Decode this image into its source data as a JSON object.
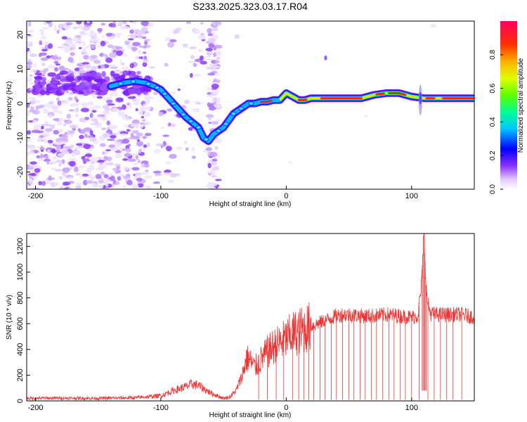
{
  "figure": {
    "title": "S233.2025.323.03.17.R04"
  },
  "chart_data": [
    {
      "type": "heatmap",
      "xlabel": "Height of straight line (km)",
      "ylabel": "Frequency (Hz)",
      "xlim": [
        -207,
        150
      ],
      "ylim": [
        -25,
        24
      ],
      "xticks": [
        -200,
        -100,
        0,
        100
      ],
      "yticks": [
        -20,
        -10,
        0,
        10,
        20
      ],
      "ridge": [
        [
          -140,
          5
        ],
        [
          -130,
          6
        ],
        [
          -120,
          6.5
        ],
        [
          -112,
          6
        ],
        [
          -105,
          5
        ],
        [
          -100,
          4
        ],
        [
          -95,
          2
        ],
        [
          -90,
          0
        ],
        [
          -85,
          -2
        ],
        [
          -80,
          -4
        ],
        [
          -75,
          -5.5
        ],
        [
          -70,
          -7
        ],
        [
          -66,
          -10
        ],
        [
          -62,
          -11
        ],
        [
          -58,
          -9
        ],
        [
          -54,
          -8
        ],
        [
          -50,
          -7
        ],
        [
          -46,
          -5
        ],
        [
          -42,
          -3
        ],
        [
          -38,
          -2
        ],
        [
          -34,
          -1
        ],
        [
          -30,
          0
        ],
        [
          -25,
          0
        ],
        [
          -20,
          0.5
        ],
        [
          -15,
          0.5
        ],
        [
          -10,
          1
        ],
        [
          -5,
          1
        ],
        [
          0,
          3
        ],
        [
          5,
          2
        ],
        [
          10,
          1
        ],
        [
          15,
          1
        ],
        [
          20,
          1.5
        ],
        [
          30,
          1.5
        ],
        [
          40,
          1.5
        ],
        [
          50,
          1.5
        ],
        [
          60,
          1.5
        ],
        [
          70,
          2.5
        ],
        [
          80,
          3
        ],
        [
          90,
          3
        ],
        [
          100,
          2
        ],
        [
          110,
          1.5
        ],
        [
          120,
          1.5
        ],
        [
          130,
          1.5
        ],
        [
          140,
          1.5
        ],
        [
          150,
          1.5
        ]
      ],
      "colorbar": {
        "label": "Normalized spectral amplitude",
        "range": [
          0,
          1
        ],
        "ticks": [
          "0.0",
          "0.2",
          "0.4",
          "0.6",
          "0.8"
        ],
        "tick_values": [
          0.0,
          0.2,
          0.4,
          0.6,
          0.8
        ],
        "colors": [
          "#ffffff",
          "#d8b8ff",
          "#6a00ff",
          "#0000ff",
          "#00c8ff",
          "#00ff80",
          "#c8ff00",
          "#ffc800",
          "#ff2000",
          "#ff0060"
        ]
      }
    },
    {
      "type": "line",
      "xlabel": "Height of straight line (km)",
      "ylabel": "SNR (10 * v/v)",
      "xlim": [
        -207,
        150
      ],
      "ylim": [
        0,
        1300
      ],
      "xticks": [
        -200,
        -100,
        0,
        100
      ],
      "yticks": [
        0,
        200,
        400,
        600,
        800,
        1000,
        1200
      ],
      "color": "#ee3333",
      "series": [
        {
          "x": [
            -207,
            -180,
            -150,
            -120,
            -100,
            -90,
            -80,
            -75,
            -70,
            -65,
            -60,
            -55,
            -50,
            -45,
            -40,
            -35,
            -32,
            -30,
            -25,
            -20,
            -15,
            -10,
            -5,
            0,
            5,
            10,
            15,
            20,
            25,
            30,
            35,
            40,
            45,
            50,
            60,
            70,
            80,
            90,
            100,
            105,
            108,
            110,
            112,
            115,
            120,
            130,
            140,
            150
          ],
          "y": [
            20,
            22,
            20,
            25,
            40,
            80,
            110,
            130,
            120,
            90,
            60,
            40,
            20,
            30,
            80,
            200,
            320,
            330,
            260,
            320,
            380,
            420,
            450,
            480,
            520,
            540,
            560,
            580,
            600,
            620,
            640,
            660,
            670,
            670,
            660,
            660,
            670,
            660,
            650,
            660,
            900,
            1280,
            800,
            680,
            670,
            670,
            670,
            650
          ]
        }
      ],
      "dropouts_x": [
        -22,
        -15,
        -8,
        -2,
        5,
        10,
        14,
        18,
        22,
        27,
        31,
        36,
        40,
        45,
        50,
        54,
        59,
        63,
        68,
        72,
        77,
        82,
        86,
        91,
        95,
        100,
        106,
        113,
        118,
        123,
        128,
        133,
        140
      ]
    }
  ]
}
